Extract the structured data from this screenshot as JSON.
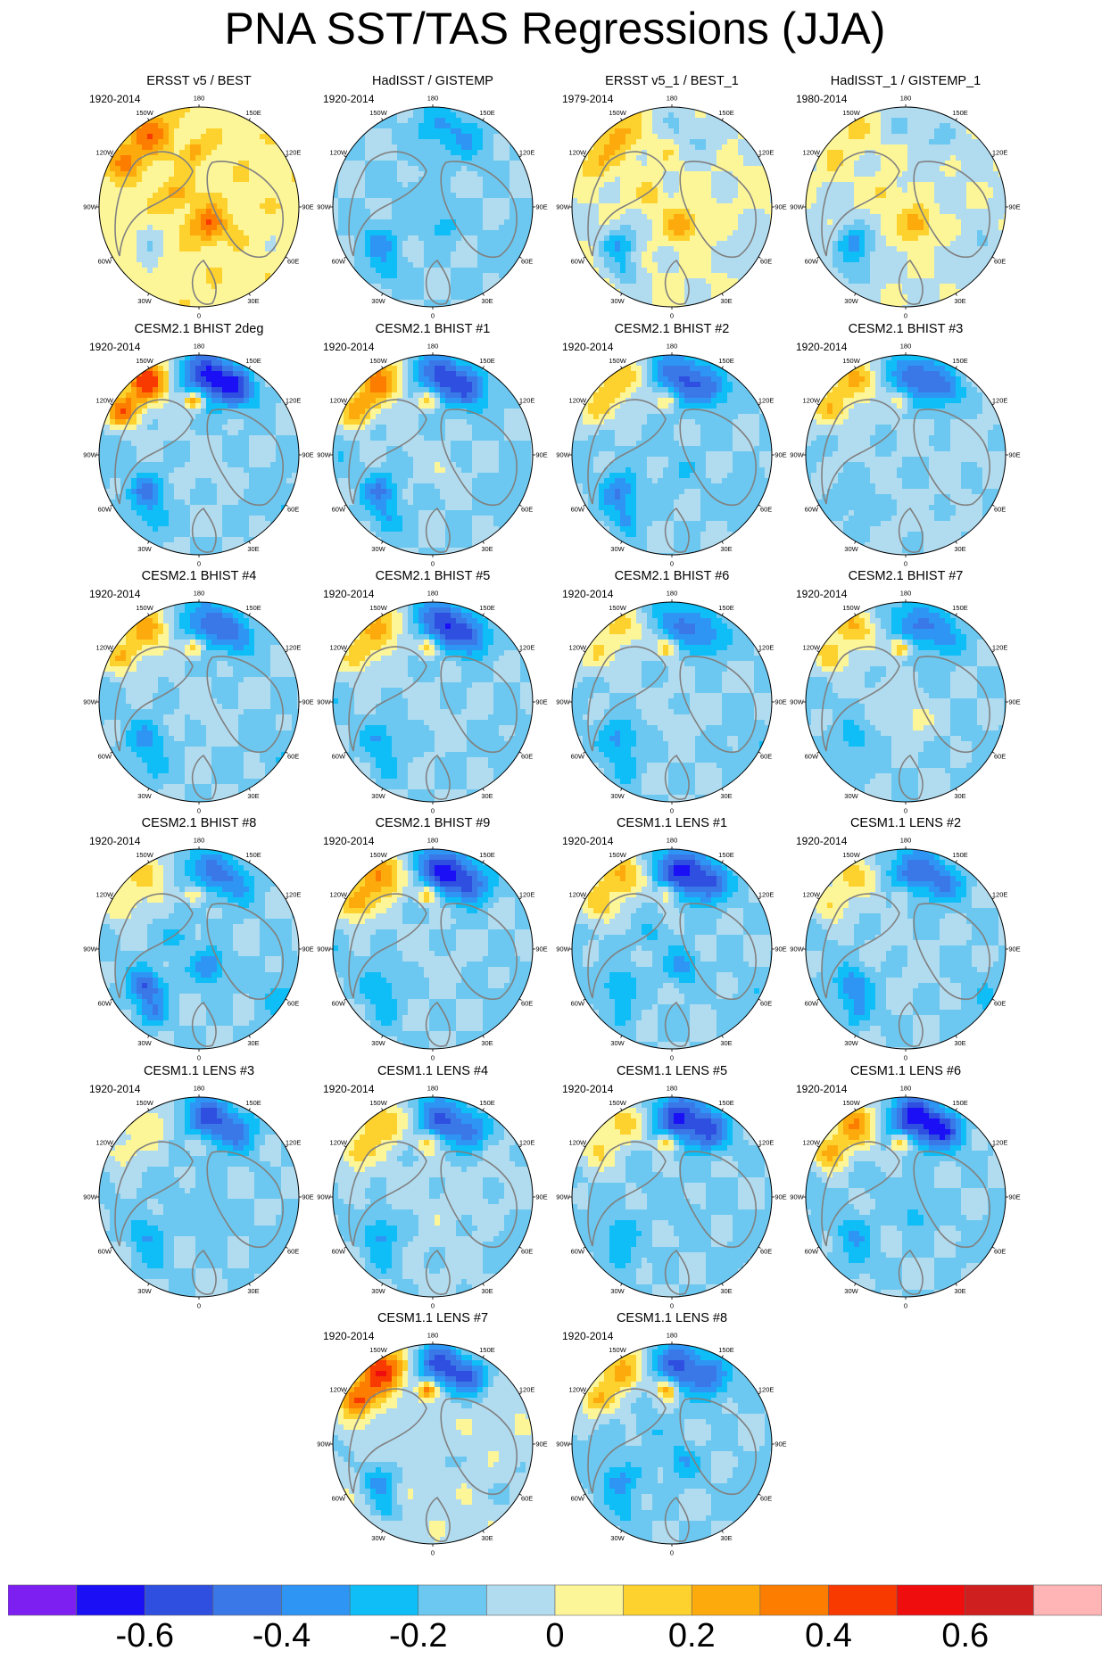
{
  "title": "PNA SST/TAS Regressions (JJA)",
  "lon_labels": [
    "180",
    "150E",
    "120E",
    "90E",
    "60E",
    "30E",
    "0",
    "30W",
    "60W",
    "90W",
    "120W",
    "150W"
  ],
  "panels": [
    {
      "title": "ERSST v5 / BEST",
      "period": "1920-2014",
      "pattern": {
        "pac_pos": 0.3,
        "pac_neg": 0.0,
        "alaska": 0.2,
        "atl": -0.15,
        "arctic": 0.35,
        "bg": 0.12
      }
    },
    {
      "title": "HadISST / GISTEMP",
      "period": "1920-2014",
      "pattern": {
        "pac_pos": 0.0,
        "pac_neg": -0.2,
        "alaska": 0.0,
        "atl": -0.25,
        "arctic": -0.15,
        "bg": -0.05
      }
    },
    {
      "title": "ERSST v5_1 / BEST_1",
      "period": "1979-2014",
      "pattern": {
        "pac_pos": 0.22,
        "pac_neg": -0.1,
        "alaska": 0.1,
        "atl": -0.3,
        "arctic": 0.25,
        "bg": 0.06
      }
    },
    {
      "title": "HadISST_1 / GISTEMP_1",
      "period": "1980-2014",
      "pattern": {
        "pac_pos": 0.12,
        "pac_neg": -0.1,
        "alaska": 0.1,
        "atl": -0.32,
        "arctic": 0.3,
        "bg": 0.04
      }
    },
    {
      "title": "CESM2.1 BHIST 2deg",
      "period": "1920-2014",
      "pattern": {
        "pac_pos": 0.55,
        "pac_neg": -0.55,
        "alaska": 0.5,
        "atl": -0.32,
        "arctic": 0.05,
        "bg": -0.05
      }
    },
    {
      "title": "CESM2.1 BHIST #1",
      "period": "1920-2014",
      "pattern": {
        "pac_pos": 0.45,
        "pac_neg": -0.45,
        "alaska": 0.35,
        "atl": -0.3,
        "arctic": 0.1,
        "bg": -0.05
      }
    },
    {
      "title": "CESM2.1 BHIST #2",
      "period": "1920-2014",
      "pattern": {
        "pac_pos": 0.3,
        "pac_neg": -0.4,
        "alaska": 0.25,
        "atl": -0.32,
        "arctic": -0.1,
        "bg": -0.05
      }
    },
    {
      "title": "CESM2.1 BHIST #3",
      "period": "1920-2014",
      "pattern": {
        "pac_pos": 0.3,
        "pac_neg": -0.4,
        "alaska": 0.2,
        "atl": -0.1,
        "arctic": -0.05,
        "bg": -0.03
      }
    },
    {
      "title": "CESM2.1 BHIST #4",
      "period": "1920-2014",
      "pattern": {
        "pac_pos": 0.35,
        "pac_neg": -0.35,
        "alaska": 0.35,
        "atl": -0.25,
        "arctic": 0.05,
        "bg": -0.05
      }
    },
    {
      "title": "CESM2.1 BHIST #5",
      "period": "1920-2014",
      "pattern": {
        "pac_pos": 0.35,
        "pac_neg": -0.45,
        "alaska": 0.35,
        "atl": -0.2,
        "arctic": 0.05,
        "bg": -0.05
      }
    },
    {
      "title": "CESM2.1 BHIST #6",
      "period": "1920-2014",
      "pattern": {
        "pac_pos": 0.25,
        "pac_neg": -0.3,
        "alaska": 0.35,
        "atl": -0.25,
        "arctic": 0.05,
        "bg": -0.05
      }
    },
    {
      "title": "CESM2.1 BHIST #7",
      "period": "1920-2014",
      "pattern": {
        "pac_pos": 0.3,
        "pac_neg": -0.3,
        "alaska": 0.4,
        "atl": -0.15,
        "arctic": 0.15,
        "bg": -0.05
      }
    },
    {
      "title": "CESM2.1 BHIST #8",
      "period": "1920-2014",
      "pattern": {
        "pac_pos": 0.25,
        "pac_neg": -0.3,
        "alaska": 0.3,
        "atl": -0.4,
        "arctic": -0.3,
        "bg": -0.05
      }
    },
    {
      "title": "CESM2.1 BHIST #9",
      "period": "1920-2014",
      "pattern": {
        "pac_pos": 0.45,
        "pac_neg": -0.5,
        "alaska": 0.4,
        "atl": -0.2,
        "arctic": 0.05,
        "bg": -0.05
      }
    },
    {
      "title": "CESM1.1 LENS #1",
      "period": "1920-2014",
      "pattern": {
        "pac_pos": 0.35,
        "pac_neg": -0.5,
        "alaska": 0.3,
        "atl": -0.2,
        "arctic": -0.25,
        "bg": -0.05
      }
    },
    {
      "title": "CESM1.1 LENS #2",
      "period": "1920-2014",
      "pattern": {
        "pac_pos": 0.25,
        "pac_neg": -0.35,
        "alaska": 0.2,
        "atl": -0.3,
        "arctic": 0.05,
        "bg": -0.05
      }
    },
    {
      "title": "CESM1.1 LENS #3",
      "period": "1920-2014",
      "pattern": {
        "pac_pos": 0.2,
        "pac_neg": -0.4,
        "alaska": 0.2,
        "atl": -0.2,
        "arctic": -0.1,
        "bg": -0.05
      }
    },
    {
      "title": "CESM1.1 LENS #4",
      "period": "1920-2014",
      "pattern": {
        "pac_pos": 0.3,
        "pac_neg": -0.4,
        "alaska": 0.3,
        "atl": -0.25,
        "arctic": 0.05,
        "bg": -0.03
      }
    },
    {
      "title": "CESM1.1 LENS #5",
      "period": "1920-2014",
      "pattern": {
        "pac_pos": 0.25,
        "pac_neg": -0.5,
        "alaska": 0.35,
        "atl": -0.2,
        "arctic": -0.1,
        "bg": -0.05
      }
    },
    {
      "title": "CESM1.1 LENS #6",
      "period": "1920-2014",
      "pattern": {
        "pac_pos": 0.4,
        "pac_neg": -0.55,
        "alaska": 0.4,
        "atl": -0.2,
        "arctic": -0.15,
        "bg": -0.05
      }
    },
    {
      "title": "CESM1.1 LENS #7",
      "period": "1920-2014",
      "pattern": {
        "pac_pos": 0.55,
        "pac_neg": -0.5,
        "alaska": 0.45,
        "atl": -0.3,
        "arctic": -0.1,
        "bg": 0.02
      }
    },
    {
      "title": "CESM1.1 LENS #8",
      "period": "1920-2014",
      "pattern": {
        "pac_pos": 0.35,
        "pac_neg": -0.4,
        "alaska": 0.4,
        "atl": -0.25,
        "arctic": -0.2,
        "bg": -0.05
      }
    }
  ],
  "colorbar": {
    "colors": [
      "#7d1ff0",
      "#1a0ff5",
      "#2e4fe0",
      "#3a78e8",
      "#2f95f5",
      "#0fbdf7",
      "#6cc8f0",
      "#b1dcf0",
      "#fdf699",
      "#fed22e",
      "#fdaa0c",
      "#fc7d00",
      "#f93a00",
      "#f00d0d",
      "#cf1f1f",
      "#ffb5b5"
    ],
    "labels": [
      "-0.6",
      "-0.4",
      "-0.2",
      "0",
      "0.2",
      "0.4",
      "0.6"
    ]
  }
}
